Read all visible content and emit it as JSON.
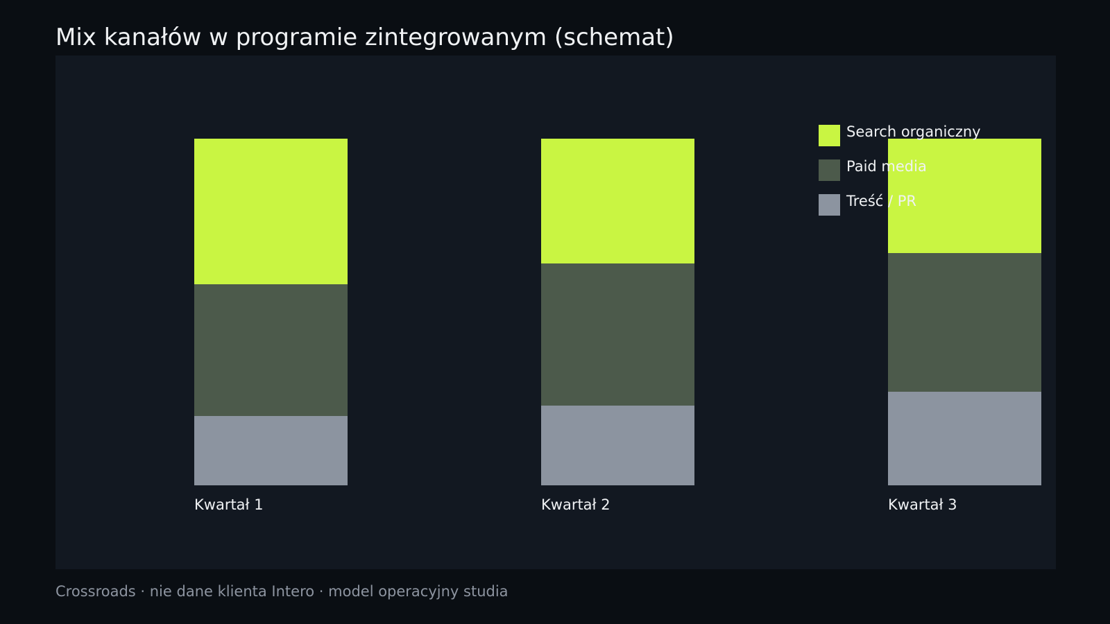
{
  "page": {
    "title": "Mix kanałów w programie zintegrowanym (schemat)",
    "footer": "Crossroads · nie dane klienta Intero · model operacyjny studia"
  },
  "colors": {
    "background": "#0a0e13",
    "panel": "#121821",
    "text": "#f0f2f4",
    "muted": "#8d94a0"
  },
  "chart_data": {
    "type": "bar",
    "stacked": true,
    "categories": [
      "Kwartał 1",
      "Kwartał 2",
      "Kwartał 3"
    ],
    "series": [
      {
        "name": "Treść / PR",
        "color": "#8c94a0",
        "values": [
          20,
          23,
          27
        ]
      },
      {
        "name": "Paid media",
        "color": "#4c5a4b",
        "values": [
          38,
          41,
          40
        ]
      },
      {
        "name": "Search organiczny",
        "color": "#c9f542",
        "values": [
          42,
          36,
          33
        ]
      }
    ],
    "legend_order": [
      "Search organiczny",
      "Paid media",
      "Treść / PR"
    ],
    "ylim": [
      0,
      100
    ],
    "legend_position": "top-right",
    "grid": false,
    "axes_visible": false
  }
}
